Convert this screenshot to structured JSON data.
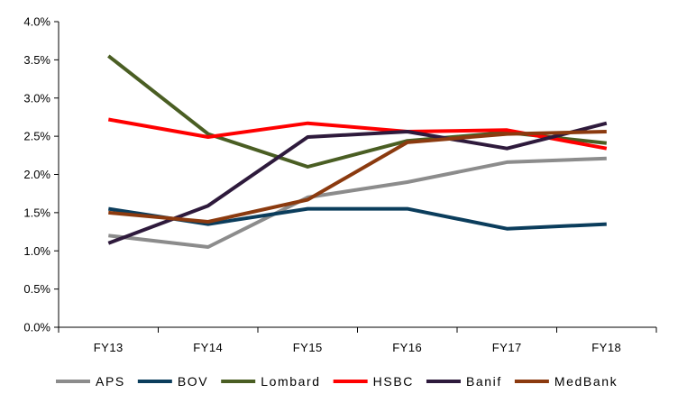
{
  "chart_data": {
    "type": "line",
    "categories": [
      "FY13",
      "FY14",
      "FY15",
      "FY16",
      "FY17",
      "FY18"
    ],
    "y_ticks": [
      "0.0%",
      "0.5%",
      "1.0%",
      "1.5%",
      "2.0%",
      "2.5%",
      "3.0%",
      "3.5%",
      "4.0%"
    ],
    "ylim": [
      0,
      4.0
    ],
    "y_unit": "%",
    "grid": false,
    "legend_position": "bottom",
    "series": [
      {
        "name": "APS",
        "color": "#8c8c8c",
        "values": [
          1.2,
          1.05,
          1.7,
          1.9,
          2.16,
          2.21
        ]
      },
      {
        "name": "BOV",
        "color": "#0b3d5c",
        "values": [
          1.55,
          1.35,
          1.55,
          1.55,
          1.29,
          1.35
        ]
      },
      {
        "name": "Lombard",
        "color": "#4a5e23",
        "values": [
          3.55,
          2.53,
          2.1,
          2.44,
          2.55,
          2.41
        ]
      },
      {
        "name": "HSBC",
        "color": "#ff0000",
        "values": [
          2.72,
          2.49,
          2.67,
          2.56,
          2.58,
          2.34
        ]
      },
      {
        "name": "Banif",
        "color": "#2e1a3c",
        "values": [
          1.1,
          1.59,
          2.49,
          2.56,
          2.34,
          2.67
        ]
      },
      {
        "name": "MedBank",
        "color": "#8b3a0f",
        "values": [
          1.5,
          1.38,
          1.67,
          2.42,
          2.53,
          2.56
        ]
      }
    ]
  }
}
